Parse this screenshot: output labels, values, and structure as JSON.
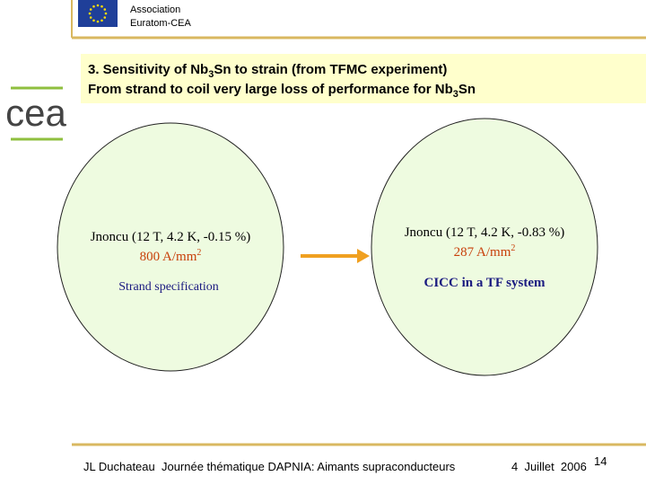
{
  "header": {
    "org_line1": "Association",
    "org_line2": "Euratom-CEA",
    "logo": "cea"
  },
  "title": {
    "line1": [
      "3. Sensitivity of Nb",
      "3",
      "Sn to strain (from TFMC experiment)"
    ],
    "line2": [
      "From strand to coil very large loss of performance for Nb",
      "3",
      "Sn"
    ]
  },
  "left": {
    "condition": "Jnoncu (12 T, 4.2 K, -0.15 %)",
    "value": "800 A/mm",
    "sup": "2",
    "label": "Strand specification"
  },
  "right": {
    "condition": "Jnoncu (12 T, 4.2 K, -0.83 %)",
    "value": "287 A/mm",
    "sup": "2",
    "label": "CICC in a TF system"
  },
  "footer": {
    "author": "JL Duchateau  Journée thématique DAPNIA: Aimants supraconducteurs",
    "date": "4  Juillet  2006",
    "page": "14"
  }
}
